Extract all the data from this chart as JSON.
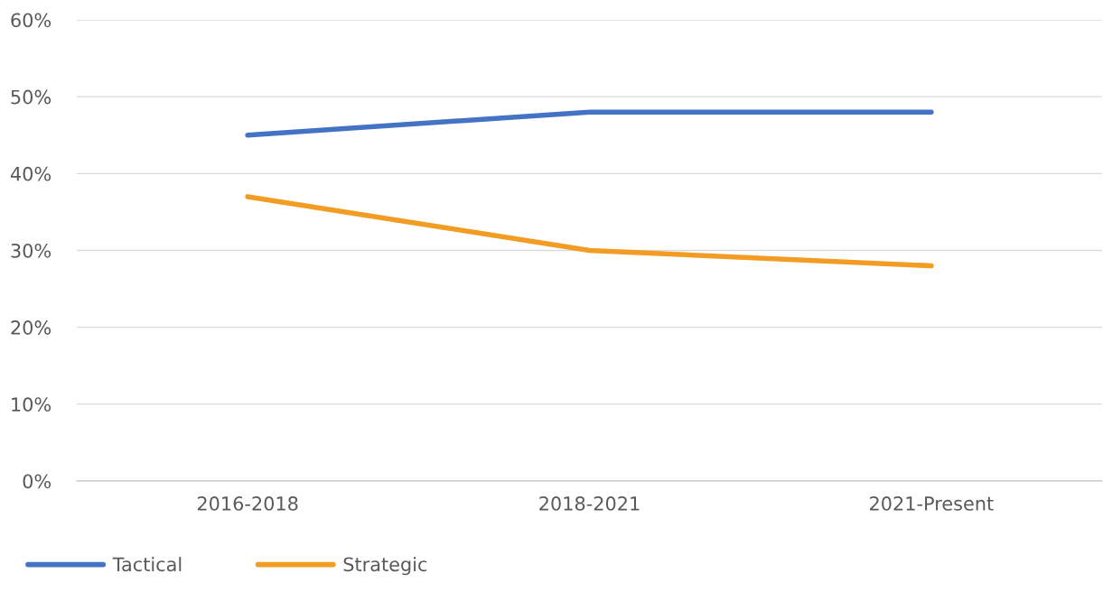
{
  "chart_data": {
    "type": "line",
    "categories": [
      "2016-2018",
      "2018-2021",
      "2021-Present"
    ],
    "series": [
      {
        "name": "Tactical",
        "color": "#4472c4",
        "values": [
          45,
          48,
          48
        ]
      },
      {
        "name": "Strategic",
        "color": "#f39c24",
        "values": [
          37,
          30,
          28
        ]
      }
    ],
    "ylim": [
      0,
      60
    ],
    "yticks": [
      {
        "value": 0,
        "label": "0%"
      },
      {
        "value": 10,
        "label": "10%"
      },
      {
        "value": 20,
        "label": "20%"
      },
      {
        "value": 30,
        "label": "30%"
      },
      {
        "value": 40,
        "label": "40%"
      },
      {
        "value": 50,
        "label": "50%"
      },
      {
        "value": 60,
        "label": "60%"
      }
    ],
    "grid": "y",
    "legend": "bottom",
    "marker": "none",
    "line_style": "solid"
  }
}
